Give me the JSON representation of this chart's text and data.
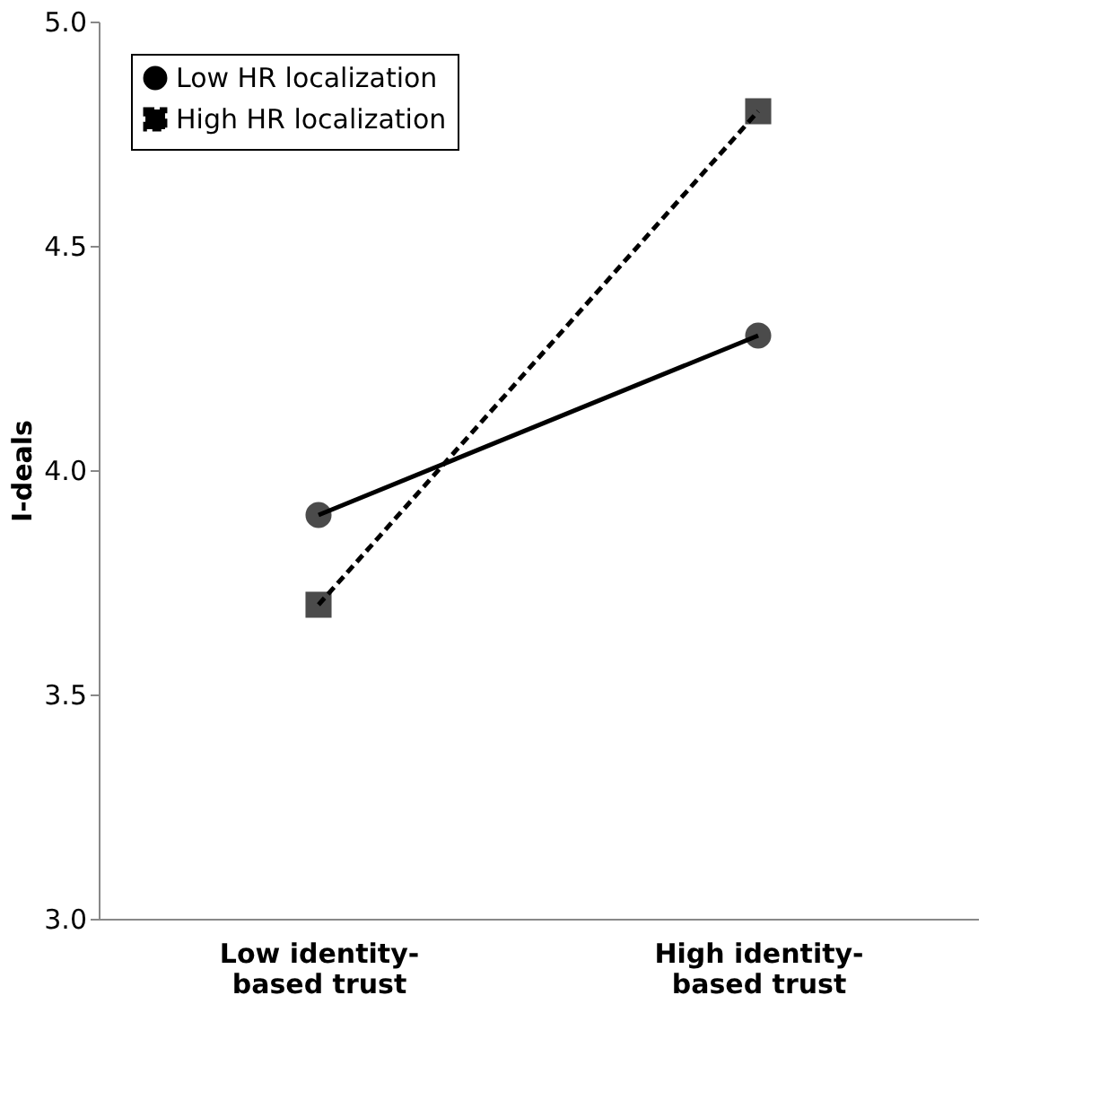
{
  "chart_data": {
    "type": "line",
    "ylabel": "I-deals",
    "categories": [
      "Low identity-based trust",
      "High identity-based trust"
    ],
    "series": [
      {
        "name": "Low HR localization",
        "color": "#000000",
        "marker": "circle",
        "line_style": "solid",
        "values": [
          3.9,
          4.3
        ]
      },
      {
        "name": "High HR localization",
        "color": "#000000",
        "marker": "square",
        "line_style": "dashed",
        "values": [
          3.7,
          4.8
        ]
      }
    ],
    "ylim": [
      3.0,
      5.0
    ],
    "yticks": [
      {
        "value": 3,
        "label": "3.0"
      },
      3.5,
      {
        "value": 4,
        "label": "4.0"
      },
      4.5,
      {
        "value": 5,
        "label": "5.0"
      }
    ],
    "grid": false,
    "legend": "top left"
  }
}
